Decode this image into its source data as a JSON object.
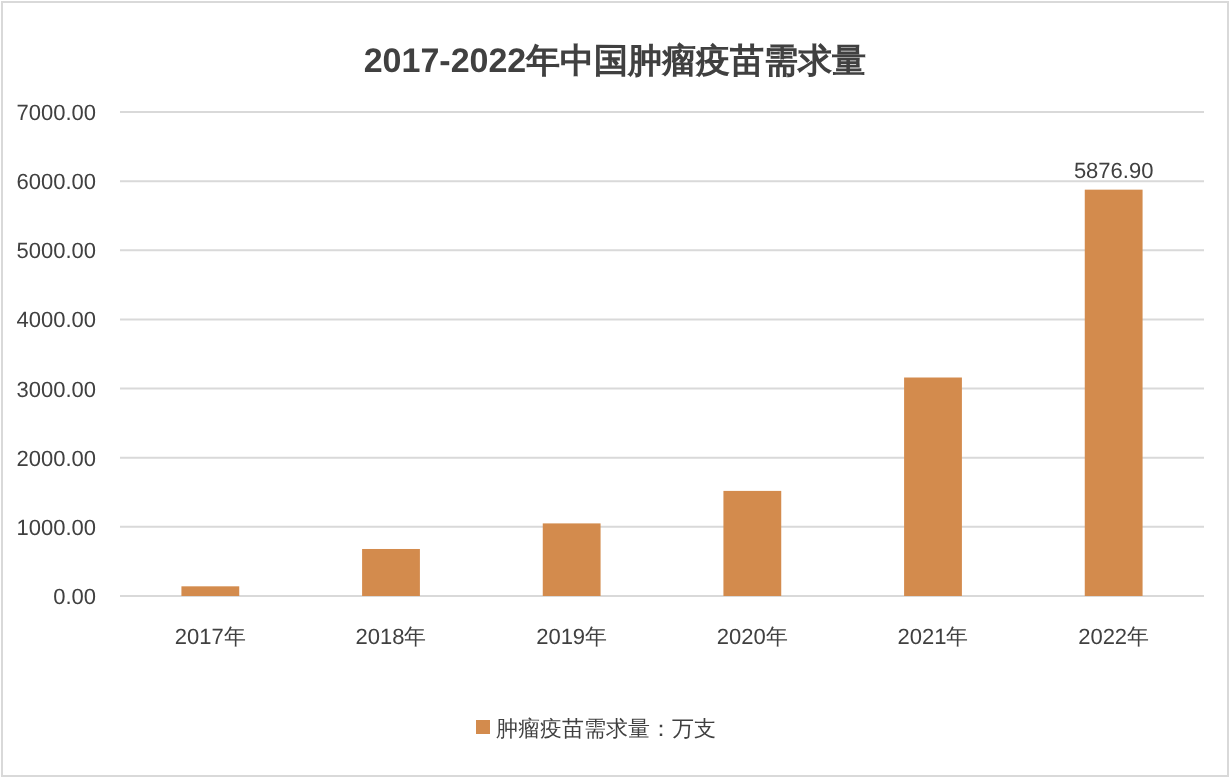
{
  "chart_data": {
    "type": "bar",
    "title": "2017-2022年中国肿瘤疫苗需求量",
    "categories": [
      "2017年",
      "2018年",
      "2019年",
      "2020年",
      "2021年",
      "2022年"
    ],
    "series": [
      {
        "name": "肿瘤疫苗需求量：万支",
        "color": "#d38b4d",
        "values": [
          140,
          680,
          1050,
          1520,
          3160,
          5876.9
        ],
        "value_labels": [
          null,
          null,
          null,
          null,
          null,
          "5876.90"
        ]
      }
    ],
    "ylim": [
      0,
      7000
    ],
    "yticks": [
      {
        "value": 0,
        "label": "0.00"
      },
      {
        "value": 1000,
        "label": "1000.00"
      },
      {
        "value": 2000,
        "label": "2000.00"
      },
      {
        "value": 3000,
        "label": "3000.00"
      },
      {
        "value": 4000,
        "label": "4000.00"
      },
      {
        "value": 5000,
        "label": "5000.00"
      },
      {
        "value": 6000,
        "label": "6000.00"
      },
      {
        "value": 7000,
        "label": "7000.00"
      }
    ],
    "grid": "y",
    "legend": "bottom"
  }
}
